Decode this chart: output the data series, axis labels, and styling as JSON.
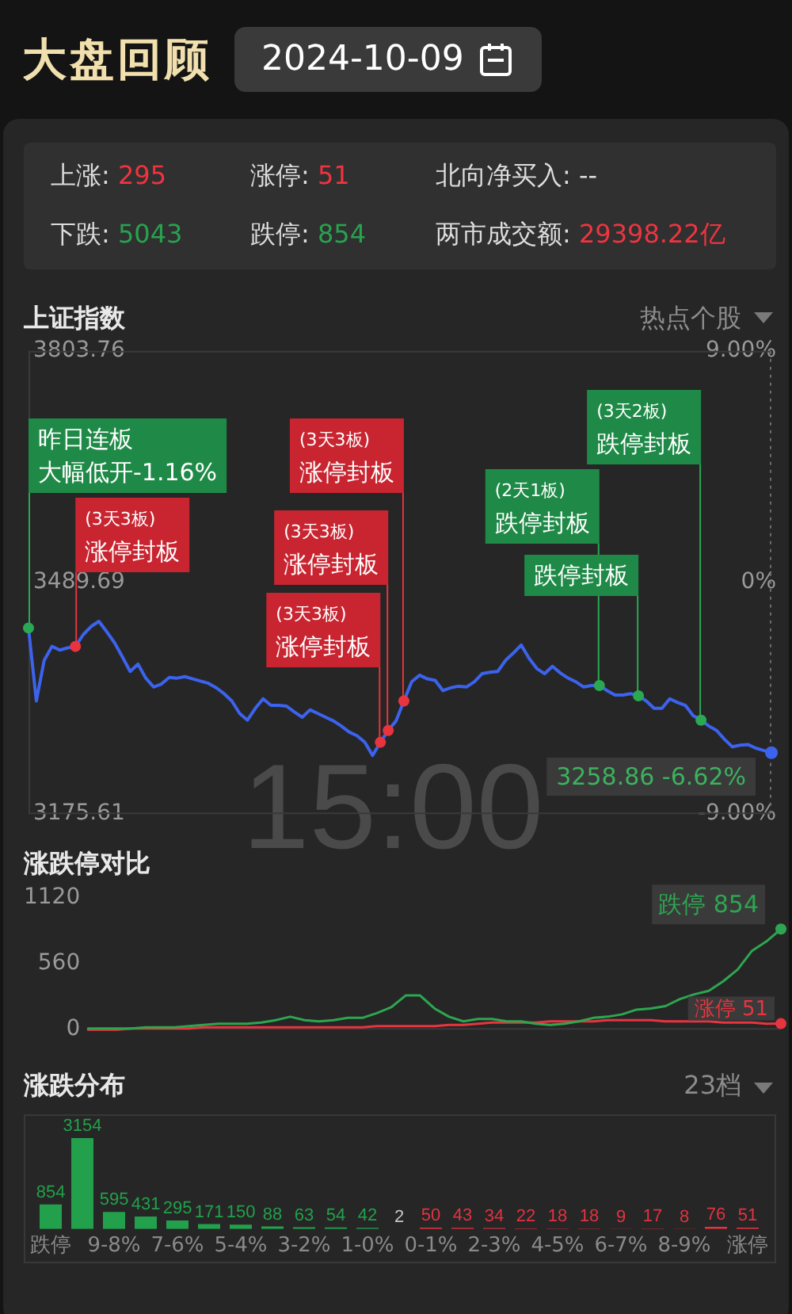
{
  "chart_data": [
    {
      "type": "other",
      "title": "大盘回顾",
      "subtitle": "2024-10-09",
      "annotations": [
        "上涨: 295",
        "涨停: 51",
        "北向净买入: --",
        "下跌: 5043",
        "跌停: 854",
        "两市成交额: 29398.22亿"
      ]
    },
    {
      "type": "line",
      "title": "上证指数",
      "categories": [
        null,
        null,
        null,
        null,
        null,
        null,
        null,
        null,
        null,
        null,
        null,
        null,
        null,
        null,
        null,
        null,
        null,
        null,
        null,
        null,
        null,
        null,
        null,
        null,
        null,
        null,
        null,
        null,
        null,
        null,
        null,
        null,
        null,
        null,
        null,
        null,
        null,
        null,
        null,
        null,
        null,
        null,
        null,
        null,
        null,
        null,
        null,
        null,
        null,
        null,
        null,
        null,
        null,
        null,
        null,
        null,
        null,
        null,
        null,
        null,
        null,
        null,
        null,
        null,
        null,
        null,
        null,
        null,
        null,
        null,
        null,
        null,
        null,
        null,
        null,
        null,
        null,
        null,
        null,
        null,
        null,
        null,
        null,
        null,
        null,
        null,
        null,
        null,
        null,
        null,
        null,
        null,
        null,
        null,
        null,
        null
      ],
      "series": [
        {
          "color": "#3c63ee",
          "values": [
            3428,
            3329,
            3384,
            3403,
            3398,
            3401,
            3403,
            3419,
            3430,
            3437,
            3423,
            3408,
            3389,
            3369,
            3379,
            3360,
            3348,
            3352,
            3361,
            3360,
            3362,
            3359,
            3356,
            3353,
            3347,
            3339,
            3329,
            3312,
            3303,
            3319,
            3332,
            3323,
            3323,
            3322,
            3314,
            3307,
            3317,
            3312,
            3307,
            3302,
            3295,
            3287,
            3282,
            3273,
            3255,
            3273,
            3289,
            3302,
            3329,
            3355,
            3364,
            3359,
            3357,
            3343,
            3347,
            3349,
            3348,
            3355,
            3366,
            3368,
            3369,
            3384,
            3394,
            3405,
            3387,
            3373,
            3366,
            3376,
            3367,
            3360,
            3355,
            3348,
            3350,
            3350,
            3343,
            3337,
            3337,
            3339,
            3336,
            3329,
            3319,
            3319,
            3332,
            3327,
            3323,
            3309,
            3303,
            3295,
            3289,
            3277,
            3267,
            3269,
            3270,
            3265,
            3262,
            3258.86
          ]
        }
      ],
      "ylim": [
        3175.61,
        3803.76
      ],
      "yticks": [
        3175.61,
        3489.69,
        3803.76
      ],
      "y2lim": [
        -9,
        9
      ],
      "y2ticks": [
        {
          "value": -9,
          "label": "-9.00%"
        },
        {
          "value": 0,
          "label": "0%"
        },
        {
          "value": 9,
          "label": "9.00%"
        }
      ],
      "annotations": [
        "热点个股",
        "昨日连板大幅低开-1.16%",
        "(3天3板)涨停封板",
        "(3天3板)涨停封板",
        "(3天3板)涨停封板",
        "(3天3板)涨停封板",
        "(2天1板)跌停封板",
        "跌停封板",
        "(3天2板)跌停封板",
        "3258.86 -6.62%",
        "15:00"
      ]
    },
    {
      "type": "line",
      "title": "涨跌停对比",
      "categories": [
        null,
        null,
        null,
        null,
        null,
        null,
        null,
        null,
        null,
        null,
        null,
        null,
        null,
        null,
        null,
        null,
        null,
        null,
        null,
        null,
        null,
        null,
        null,
        null,
        null,
        null,
        null,
        null,
        null,
        null,
        null,
        null,
        null,
        null,
        null,
        null,
        null,
        null,
        null,
        null,
        null,
        null,
        null,
        null,
        null,
        null,
        null,
        null,
        null
      ],
      "series": [
        {
          "name": "跌停",
          "color": "#2da650",
          "values": [
            10,
            10,
            10,
            10,
            20,
            20,
            20,
            30,
            40,
            50,
            50,
            50,
            60,
            80,
            110,
            80,
            70,
            80,
            100,
            100,
            140,
            190,
            290,
            290,
            180,
            110,
            70,
            90,
            90,
            70,
            70,
            50,
            40,
            50,
            70,
            100,
            110,
            130,
            170,
            180,
            200,
            260,
            300,
            330,
            410,
            510,
            670,
            750,
            854
          ],
          "value_labels": [
            null,
            null,
            null,
            null,
            null,
            null,
            null,
            null,
            null,
            null,
            null,
            null,
            null,
            null,
            null,
            null,
            null,
            null,
            null,
            null,
            null,
            null,
            null,
            null,
            null,
            null,
            null,
            null,
            null,
            null,
            null,
            null,
            null,
            null,
            null,
            null,
            null,
            null,
            null,
            null,
            null,
            null,
            null,
            null,
            null,
            null,
            null,
            null,
            "854"
          ]
        },
        {
          "name": "涨停",
          "color": "#e8343f",
          "values": [
            0,
            0,
            0,
            10,
            10,
            10,
            10,
            10,
            20,
            20,
            20,
            20,
            20,
            20,
            20,
            20,
            20,
            20,
            20,
            20,
            30,
            30,
            30,
            30,
            30,
            40,
            40,
            50,
            60,
            60,
            60,
            60,
            70,
            70,
            70,
            70,
            80,
            80,
            80,
            80,
            70,
            70,
            70,
            70,
            60,
            60,
            60,
            50,
            51
          ],
          "value_labels": [
            null,
            null,
            null,
            null,
            null,
            null,
            null,
            null,
            null,
            null,
            null,
            null,
            null,
            null,
            null,
            null,
            null,
            null,
            null,
            null,
            null,
            null,
            null,
            null,
            null,
            null,
            null,
            null,
            null,
            null,
            null,
            null,
            null,
            null,
            null,
            null,
            null,
            null,
            null,
            null,
            null,
            null,
            null,
            null,
            null,
            null,
            null,
            null,
            "51"
          ]
        }
      ],
      "ylim": [
        0,
        1120
      ],
      "yticks": [
        0,
        560,
        1120
      ]
    },
    {
      "type": "bar",
      "title": "涨跌分布",
      "categories": [
        "跌停",
        null,
        "9-8%",
        null,
        "7-6%",
        null,
        "5-4%",
        null,
        "3-2%",
        null,
        "1-0%",
        null,
        "0-1%",
        null,
        "2-3%",
        null,
        "4-5%",
        null,
        "6-7%",
        null,
        "8-9%",
        null,
        "涨停"
      ],
      "values": [
        854,
        3154,
        595,
        431,
        295,
        171,
        150,
        88,
        63,
        54,
        42,
        2,
        50,
        43,
        34,
        22,
        18,
        18,
        9,
        17,
        8,
        76,
        51
      ],
      "colors": [
        "#22a04b",
        "#22a04b",
        "#22a04b",
        "#22a04b",
        "#22a04b",
        "#22a04b",
        "#22a04b",
        "#22a04b",
        "#22a04b",
        "#22a04b",
        "#22a04b",
        "#c8c8c8",
        "#e23340",
        "#e23340",
        "#e23340",
        "#e23340",
        "#e23340",
        "#e23340",
        "#e23340",
        "#e23340",
        "#e23340",
        "#e23340",
        "#e23340"
      ],
      "data_labels": true,
      "tick_labels": "x",
      "annotations": [
        "23档"
      ]
    }
  ]
}
